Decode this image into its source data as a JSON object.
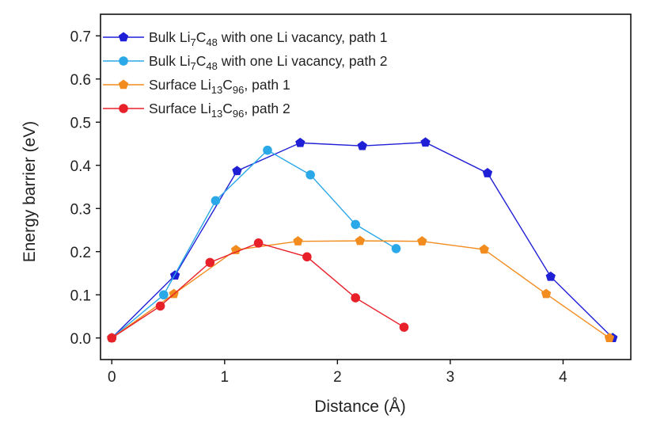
{
  "chart_data": {
    "type": "line",
    "xlabel": "Distance (Å)",
    "ylabel": "Energy barrier (eV)",
    "xlim": [
      -0.1,
      4.6
    ],
    "ylim": [
      -0.05,
      0.75
    ],
    "xticks": [
      0,
      1,
      2,
      3,
      4
    ],
    "yticks": [
      0.0,
      0.1,
      0.2,
      0.3,
      0.4,
      0.5,
      0.6,
      0.7
    ],
    "xtick_labels": [
      "0",
      "1",
      "2",
      "3",
      "4"
    ],
    "ytick_labels": [
      "0.0",
      "0.1",
      "0.2",
      "0.3",
      "0.4",
      "0.5",
      "0.6",
      "0.7"
    ],
    "grid": false,
    "legend_position": "top-left",
    "series": [
      {
        "name": "Bulk Li7C48 with one Li vacancy, path 1",
        "legend": {
          "pre": "Bulk Li",
          "sub1": "7",
          "mid": "C",
          "sub2": "48",
          "post": " with one Li vacancy, path 1"
        },
        "color": "#1f1fd6",
        "marker": "pentagon",
        "x": [
          0.0,
          0.56,
          1.11,
          1.67,
          2.22,
          2.78,
          3.33,
          3.89,
          4.44
        ],
        "y": [
          0.0,
          0.145,
          0.387,
          0.452,
          0.445,
          0.453,
          0.382,
          0.142,
          0.0
        ]
      },
      {
        "name": "Bulk Li7C48 with one Li vacancy, path 2",
        "legend": {
          "pre": "Bulk Li",
          "sub1": "7",
          "mid": "C",
          "sub2": "48",
          "post": " with one Li vacancy, path 2"
        },
        "color": "#2aa8e8",
        "marker": "circle",
        "x": [
          0.0,
          0.46,
          0.92,
          1.38,
          1.76,
          2.16,
          2.52
        ],
        "y": [
          0.0,
          0.1,
          0.318,
          0.435,
          0.378,
          0.263,
          0.207
        ]
      },
      {
        "name": "Surface Li13C96, path 1",
        "legend": {
          "pre": "Surface Li",
          "sub1": "13",
          "mid": "C",
          "sub2": "96",
          "post": ", path 1"
        },
        "color": "#f28c1f",
        "marker": "pentagon",
        "x": [
          0.0,
          0.55,
          1.1,
          1.65,
          2.2,
          2.75,
          3.3,
          3.85,
          4.41
        ],
        "y": [
          0.0,
          0.102,
          0.204,
          0.224,
          0.225,
          0.224,
          0.205,
          0.102,
          0.0
        ]
      },
      {
        "name": "Surface Li13C96, path 2",
        "legend": {
          "pre": "Surface Li",
          "sub1": "13",
          "mid": "C",
          "sub2": "96",
          "post": ", path 2"
        },
        "color": "#e8202a",
        "marker": "circle",
        "x": [
          0.0,
          0.43,
          0.87,
          1.3,
          1.73,
          2.16,
          2.59
        ],
        "y": [
          0.0,
          0.074,
          0.175,
          0.22,
          0.188,
          0.093,
          0.025
        ]
      }
    ]
  }
}
